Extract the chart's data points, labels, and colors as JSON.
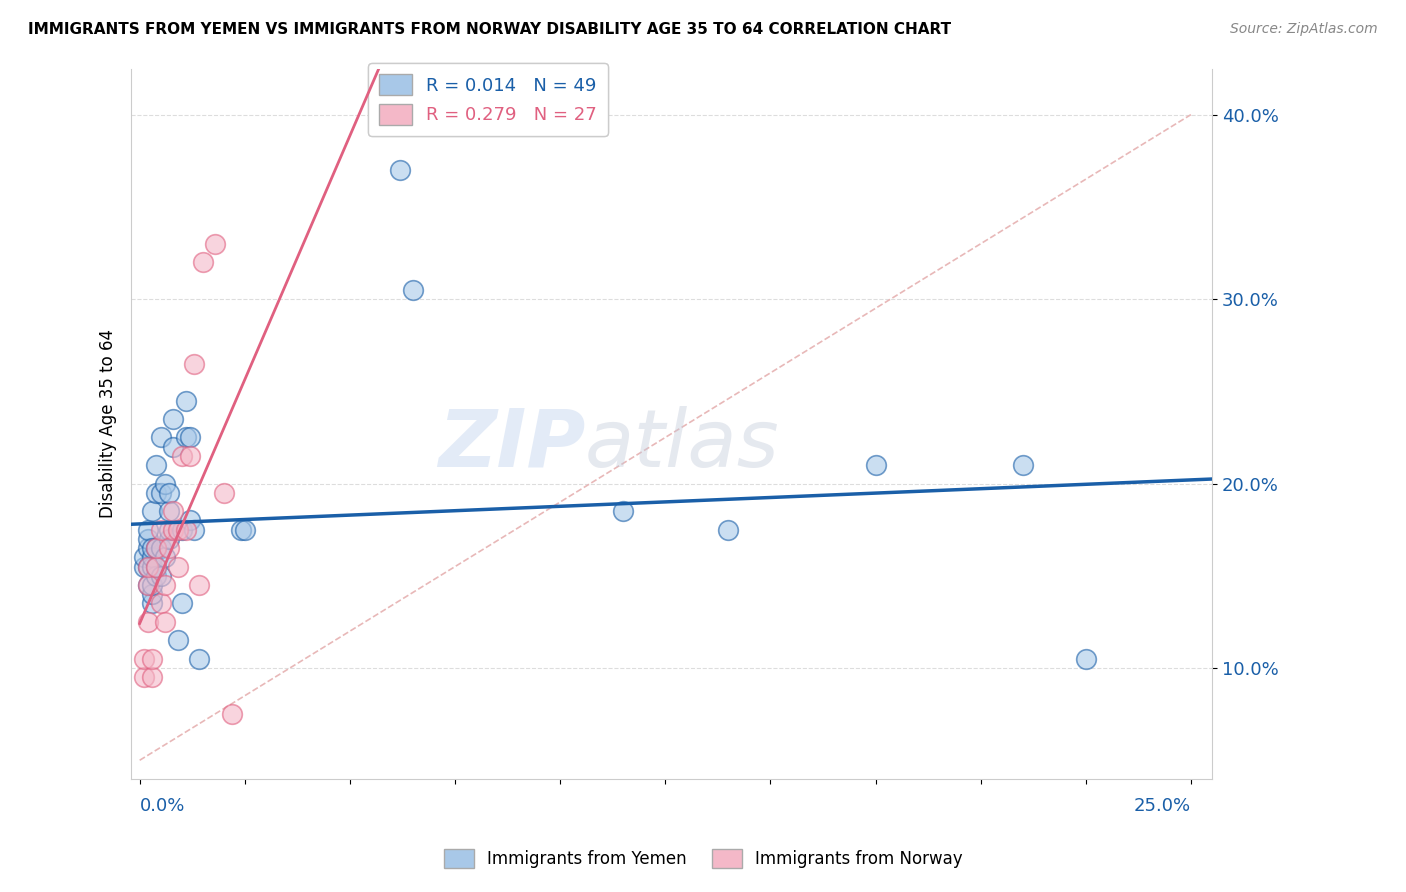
{
  "title": "IMMIGRANTS FROM YEMEN VS IMMIGRANTS FROM NORWAY DISABILITY AGE 35 TO 64 CORRELATION CHART",
  "source": "Source: ZipAtlas.com",
  "ylabel": "Disability Age 35 to 64",
  "ylim": [
    0.04,
    0.425
  ],
  "xlim": [
    -0.002,
    0.255
  ],
  "yticks": [
    0.1,
    0.2,
    0.3,
    0.4
  ],
  "ytick_labels": [
    "10.0%",
    "20.0%",
    "30.0%",
    "40.0%"
  ],
  "legend_blue_label": "R = 0.014   N = 49",
  "legend_pink_label": "R = 0.279   N = 27",
  "legend_bottom_blue": "Immigrants from Yemen",
  "legend_bottom_pink": "Immigrants from Norway",
  "watermark_zip": "ZIP",
  "watermark_atlas": "atlas",
  "blue_color": "#a8c8e8",
  "pink_color": "#f4b8c8",
  "blue_line_color": "#1a5fa8",
  "pink_line_color": "#e06080",
  "diag_line_color": "#e8b8b8",
  "yemen_x": [
    0.001,
    0.001,
    0.002,
    0.002,
    0.002,
    0.002,
    0.002,
    0.003,
    0.003,
    0.003,
    0.003,
    0.003,
    0.003,
    0.003,
    0.004,
    0.004,
    0.004,
    0.004,
    0.004,
    0.005,
    0.005,
    0.005,
    0.005,
    0.006,
    0.006,
    0.007,
    0.007,
    0.007,
    0.007,
    0.008,
    0.008,
    0.009,
    0.01,
    0.01,
    0.011,
    0.011,
    0.012,
    0.012,
    0.013,
    0.014,
    0.024,
    0.025,
    0.062,
    0.065,
    0.115,
    0.14,
    0.175,
    0.21,
    0.225
  ],
  "yemen_y": [
    0.155,
    0.16,
    0.145,
    0.155,
    0.165,
    0.17,
    0.175,
    0.135,
    0.14,
    0.145,
    0.155,
    0.16,
    0.165,
    0.185,
    0.15,
    0.155,
    0.165,
    0.195,
    0.21,
    0.15,
    0.165,
    0.195,
    0.225,
    0.16,
    0.2,
    0.17,
    0.175,
    0.185,
    0.195,
    0.22,
    0.235,
    0.115,
    0.135,
    0.175,
    0.225,
    0.245,
    0.18,
    0.225,
    0.175,
    0.105,
    0.175,
    0.175,
    0.37,
    0.305,
    0.185,
    0.175,
    0.21,
    0.21,
    0.105
  ],
  "norway_x": [
    0.001,
    0.001,
    0.002,
    0.002,
    0.002,
    0.003,
    0.003,
    0.004,
    0.004,
    0.005,
    0.005,
    0.006,
    0.006,
    0.007,
    0.008,
    0.008,
    0.009,
    0.009,
    0.01,
    0.011,
    0.012,
    0.013,
    0.014,
    0.015,
    0.018,
    0.02,
    0.022
  ],
  "norway_y": [
    0.095,
    0.105,
    0.125,
    0.145,
    0.155,
    0.095,
    0.105,
    0.155,
    0.165,
    0.135,
    0.175,
    0.125,
    0.145,
    0.165,
    0.175,
    0.185,
    0.155,
    0.175,
    0.215,
    0.175,
    0.215,
    0.265,
    0.145,
    0.32,
    0.33,
    0.195,
    0.075
  ]
}
